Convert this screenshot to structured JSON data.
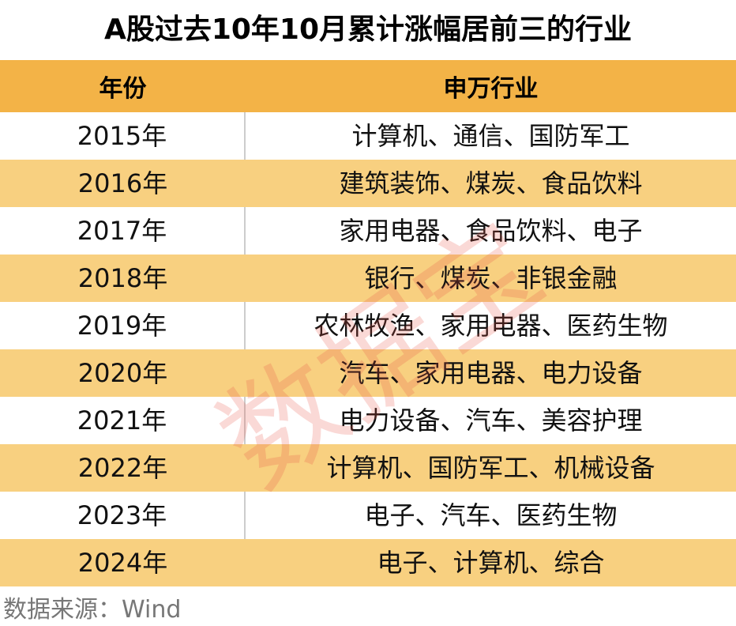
{
  "title": "A股过去10年10月累计涨幅居前三的行业",
  "table": {
    "headers": [
      "年份",
      "申万行业"
    ],
    "rows": [
      {
        "year": "2015年",
        "industries": "计算机、通信、国防军工"
      },
      {
        "year": "2016年",
        "industries": "建筑装饰、煤炭、食品饮料"
      },
      {
        "year": "2017年",
        "industries": "家用电器、食品饮料、电子"
      },
      {
        "year": "2018年",
        "industries": "银行、煤炭、非银金融"
      },
      {
        "year": "2019年",
        "industries": "农林牧渔、家用电器、医药生物"
      },
      {
        "year": "2020年",
        "industries": "汽车、家用电器、电力设备"
      },
      {
        "year": "2021年",
        "industries": "电力设备、汽车、美容护理"
      },
      {
        "year": "2022年",
        "industries": "计算机、国防军工、机械设备"
      },
      {
        "year": "2023年",
        "industries": "电子、汽车、医药生物"
      },
      {
        "year": "2024年",
        "industries": "电子、计算机、综合"
      }
    ]
  },
  "source": "数据来源：Wind",
  "watermark": "数据宝",
  "colors": {
    "header": "#F3B347",
    "stripe": "#F8D080",
    "watermark": "#E65046"
  }
}
